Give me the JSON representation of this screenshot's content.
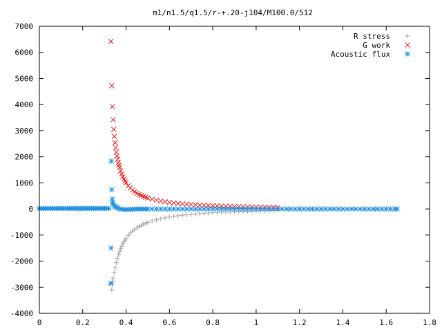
{
  "chart_data": {
    "type": "scatter",
    "title": "m1/n1.5/q1.5/r-+.20-j104/M100.0/512",
    "xlabel": "",
    "ylabel": "",
    "xlim": [
      0,
      1.8
    ],
    "ylim": [
      -4000,
      7000
    ],
    "grid": false,
    "legend_position": "top-right",
    "x_ticks": [
      0,
      0.2,
      0.4,
      0.6,
      0.8,
      1,
      1.2,
      1.4,
      1.6,
      1.8
    ],
    "x_tick_labels": [
      "0",
      "0.2",
      "0.4",
      "0.6",
      "0.8",
      "1",
      "1.2",
      "1.4",
      "1.6",
      "1.8"
    ],
    "y_ticks": [
      -4000,
      -3000,
      -2000,
      -1000,
      0,
      1000,
      2000,
      3000,
      4000,
      5000,
      6000,
      7000
    ],
    "y_tick_labels": [
      "-4000",
      "-3000",
      "-2000",
      "-1000",
      "0",
      "1000",
      "2000",
      "3000",
      "4000",
      "5000",
      "6000",
      "7000"
    ],
    "series": [
      {
        "name": "R stress",
        "marker": "plus",
        "color": "#a0a0a0",
        "points": [
          [
            0.02,
            0
          ],
          [
            0.06,
            0
          ],
          [
            0.1,
            0
          ],
          [
            0.14,
            0
          ],
          [
            0.18,
            0
          ],
          [
            0.22,
            0
          ],
          [
            0.26,
            0
          ],
          [
            0.3,
            0
          ],
          [
            0.32,
            0
          ],
          [
            0.33,
            -2880
          ],
          [
            0.334,
            -3100
          ],
          [
            0.336,
            -2880
          ],
          [
            0.338,
            -2780
          ],
          [
            0.34,
            -2650
          ],
          [
            0.345,
            -2450
          ],
          [
            0.35,
            -2250
          ],
          [
            0.355,
            -2060
          ],
          [
            0.36,
            -1900
          ],
          [
            0.365,
            -1760
          ],
          [
            0.37,
            -1640
          ],
          [
            0.375,
            -1530
          ],
          [
            0.38,
            -1430
          ],
          [
            0.385,
            -1340
          ],
          [
            0.39,
            -1260
          ],
          [
            0.395,
            -1190
          ],
          [
            0.4,
            -1120
          ],
          [
            0.41,
            -1010
          ],
          [
            0.42,
            -920
          ],
          [
            0.43,
            -850
          ],
          [
            0.44,
            -780
          ],
          [
            0.45,
            -720
          ],
          [
            0.46,
            -670
          ],
          [
            0.47,
            -620
          ],
          [
            0.48,
            -580
          ],
          [
            0.49,
            -545
          ],
          [
            0.5,
            -515
          ],
          [
            0.52,
            -460
          ],
          [
            0.54,
            -415
          ],
          [
            0.56,
            -375
          ],
          [
            0.58,
            -340
          ],
          [
            0.6,
            -310
          ],
          [
            0.62,
            -285
          ],
          [
            0.64,
            -262
          ],
          [
            0.66,
            -242
          ],
          [
            0.68,
            -224
          ],
          [
            0.7,
            -208
          ],
          [
            0.72,
            -193
          ],
          [
            0.74,
            -180
          ],
          [
            0.76,
            -168
          ],
          [
            0.78,
            -157
          ],
          [
            0.8,
            -147
          ],
          [
            0.82,
            -138
          ],
          [
            0.84,
            -130
          ],
          [
            0.86,
            -122
          ],
          [
            0.88,
            -115
          ],
          [
            0.9,
            -108
          ],
          [
            0.92,
            -102
          ],
          [
            0.94,
            -96
          ],
          [
            0.96,
            -91
          ],
          [
            0.98,
            -86
          ],
          [
            1.0,
            -81
          ],
          [
            1.02,
            -77
          ],
          [
            1.04,
            -73
          ],
          [
            1.06,
            -69
          ],
          [
            1.08,
            -66
          ],
          [
            1.1,
            -63
          ],
          [
            1.15,
            0
          ],
          [
            1.2,
            0
          ],
          [
            1.25,
            0
          ],
          [
            1.3,
            0
          ],
          [
            1.35,
            0
          ],
          [
            1.4,
            0
          ],
          [
            1.45,
            0
          ],
          [
            1.5,
            0
          ],
          [
            1.55,
            0
          ],
          [
            1.6,
            0
          ],
          [
            1.64,
            0
          ]
        ]
      },
      {
        "name": "G work",
        "marker": "cross",
        "color": "#e02020",
        "points": [
          [
            0.33,
            6420
          ],
          [
            0.334,
            4720
          ],
          [
            0.337,
            3920
          ],
          [
            0.34,
            3420
          ],
          [
            0.343,
            3050
          ],
          [
            0.346,
            2780
          ],
          [
            0.349,
            2540
          ],
          [
            0.352,
            2350
          ],
          [
            0.355,
            2180
          ],
          [
            0.358,
            2030
          ],
          [
            0.361,
            1900
          ],
          [
            0.364,
            1780
          ],
          [
            0.367,
            1680
          ],
          [
            0.37,
            1590
          ],
          [
            0.375,
            1460
          ],
          [
            0.38,
            1340
          ],
          [
            0.385,
            1240
          ],
          [
            0.39,
            1150
          ],
          [
            0.395,
            1070
          ],
          [
            0.4,
            1000
          ],
          [
            0.41,
            890
          ],
          [
            0.42,
            800
          ],
          [
            0.43,
            720
          ],
          [
            0.44,
            655
          ],
          [
            0.45,
            600
          ],
          [
            0.46,
            555
          ],
          [
            0.47,
            515
          ],
          [
            0.48,
            480
          ],
          [
            0.49,
            450
          ],
          [
            0.5,
            420
          ],
          [
            0.52,
            375
          ],
          [
            0.54,
            335
          ],
          [
            0.56,
            302
          ],
          [
            0.58,
            274
          ],
          [
            0.6,
            250
          ],
          [
            0.62,
            230
          ],
          [
            0.64,
            212
          ],
          [
            0.66,
            196
          ],
          [
            0.68,
            182
          ],
          [
            0.7,
            170
          ],
          [
            0.72,
            159
          ],
          [
            0.74,
            149
          ],
          [
            0.76,
            140
          ],
          [
            0.78,
            132
          ],
          [
            0.8,
            125
          ],
          [
            0.82,
            118
          ],
          [
            0.84,
            112
          ],
          [
            0.86,
            106
          ],
          [
            0.88,
            101
          ],
          [
            0.9,
            96
          ],
          [
            0.92,
            92
          ],
          [
            0.94,
            88
          ],
          [
            0.96,
            84
          ],
          [
            0.98,
            80
          ],
          [
            1.0,
            77
          ],
          [
            1.02,
            74
          ],
          [
            1.04,
            71
          ],
          [
            1.06,
            68
          ],
          [
            1.08,
            66
          ],
          [
            1.1,
            63
          ]
        ]
      },
      {
        "name": "Acoustic flux",
        "marker": "star",
        "color": "#1e90e0",
        "points": [
          [
            0.0,
            20
          ],
          [
            0.01,
            20
          ],
          [
            0.02,
            20
          ],
          [
            0.03,
            20
          ],
          [
            0.04,
            20
          ],
          [
            0.05,
            20
          ],
          [
            0.06,
            20
          ],
          [
            0.07,
            20
          ],
          [
            0.08,
            20
          ],
          [
            0.09,
            20
          ],
          [
            0.1,
            20
          ],
          [
            0.11,
            20
          ],
          [
            0.12,
            20
          ],
          [
            0.13,
            20
          ],
          [
            0.14,
            20
          ],
          [
            0.15,
            20
          ],
          [
            0.16,
            20
          ],
          [
            0.17,
            20
          ],
          [
            0.18,
            20
          ],
          [
            0.19,
            20
          ],
          [
            0.2,
            20
          ],
          [
            0.21,
            20
          ],
          [
            0.22,
            20
          ],
          [
            0.23,
            20
          ],
          [
            0.24,
            20
          ],
          [
            0.25,
            20
          ],
          [
            0.26,
            20
          ],
          [
            0.27,
            20
          ],
          [
            0.28,
            20
          ],
          [
            0.29,
            20
          ],
          [
            0.3,
            20
          ],
          [
            0.31,
            20
          ],
          [
            0.32,
            20
          ],
          [
            0.33,
            -2850
          ],
          [
            0.331,
            -1500
          ],
          [
            0.332,
            1830
          ],
          [
            0.334,
            740
          ],
          [
            0.336,
            380
          ],
          [
            0.338,
            250
          ],
          [
            0.34,
            180
          ],
          [
            0.345,
            120
          ],
          [
            0.35,
            90
          ],
          [
            0.355,
            60
          ],
          [
            0.36,
            40
          ],
          [
            0.37,
            10
          ],
          [
            0.38,
            -10
          ],
          [
            0.39,
            -20
          ],
          [
            0.4,
            -25
          ],
          [
            0.41,
            -20
          ],
          [
            0.42,
            -15
          ],
          [
            0.43,
            -10
          ],
          [
            0.44,
            -5
          ],
          [
            0.45,
            0
          ],
          [
            0.46,
            0
          ],
          [
            0.47,
            0
          ],
          [
            0.48,
            0
          ],
          [
            0.49,
            0
          ],
          [
            0.5,
            0
          ],
          [
            0.52,
            0
          ],
          [
            0.54,
            0
          ],
          [
            0.56,
            0
          ],
          [
            0.58,
            0
          ],
          [
            0.6,
            0
          ],
          [
            0.62,
            0
          ],
          [
            0.64,
            0
          ],
          [
            0.66,
            0
          ],
          [
            0.68,
            0
          ],
          [
            0.7,
            0
          ],
          [
            0.72,
            0
          ],
          [
            0.74,
            0
          ],
          [
            0.76,
            0
          ],
          [
            0.78,
            0
          ],
          [
            0.8,
            0
          ],
          [
            0.82,
            0
          ],
          [
            0.84,
            0
          ],
          [
            0.86,
            0
          ],
          [
            0.88,
            0
          ],
          [
            0.9,
            0
          ],
          [
            0.92,
            0
          ],
          [
            0.94,
            0
          ],
          [
            0.96,
            0
          ],
          [
            0.98,
            0
          ],
          [
            1.0,
            0
          ],
          [
            1.02,
            0
          ],
          [
            1.04,
            0
          ],
          [
            1.06,
            0
          ],
          [
            1.08,
            0
          ],
          [
            1.1,
            0
          ],
          [
            1.12,
            0
          ],
          [
            1.14,
            0
          ],
          [
            1.16,
            0
          ],
          [
            1.18,
            0
          ],
          [
            1.2,
            0
          ],
          [
            1.22,
            0
          ],
          [
            1.24,
            0
          ],
          [
            1.26,
            0
          ],
          [
            1.28,
            0
          ],
          [
            1.3,
            0
          ],
          [
            1.32,
            0
          ],
          [
            1.34,
            0
          ],
          [
            1.36,
            0
          ],
          [
            1.38,
            0
          ],
          [
            1.4,
            0
          ],
          [
            1.42,
            0
          ],
          [
            1.44,
            0
          ],
          [
            1.46,
            0
          ],
          [
            1.48,
            0
          ],
          [
            1.5,
            0
          ],
          [
            1.52,
            0
          ],
          [
            1.54,
            0
          ],
          [
            1.56,
            0
          ],
          [
            1.58,
            0
          ],
          [
            1.6,
            0
          ],
          [
            1.62,
            0
          ],
          [
            1.64,
            0
          ],
          [
            1.65,
            0
          ]
        ]
      }
    ]
  }
}
